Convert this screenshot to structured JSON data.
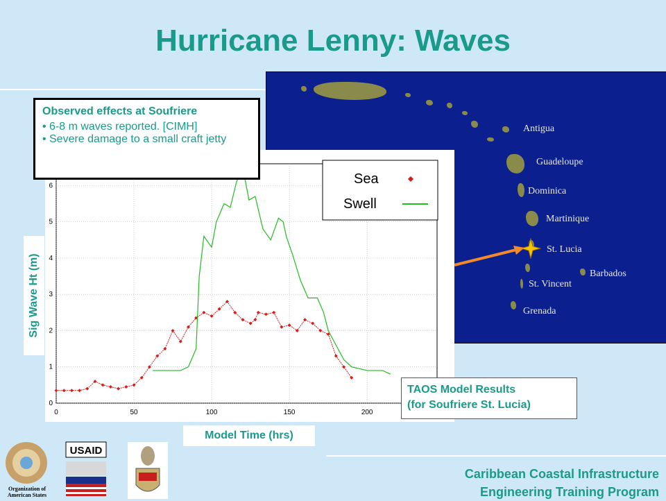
{
  "title": "Hurricane Lenny: Waves",
  "observed": {
    "heading": "Observed effects at Soufriere",
    "bullets": [
      "6-8 m waves reported. [CIMH]",
      "Severe damage to a small craft jetty"
    ]
  },
  "taos": {
    "line1": "TAOS Model Results",
    "line2": "(for Soufriere St. Lucia)"
  },
  "map": {
    "labels": [
      "Antigua",
      "Guadeloupe",
      "Dominica",
      "Martinique",
      "St. Lucia",
      "Barbados",
      "St. Vincent",
      "Grenada"
    ],
    "colors": {
      "sea": "#0b1f8f",
      "land": "#8a8a4a",
      "marker": "#f5c400",
      "arrow": "#f08a2a"
    }
  },
  "footer": {
    "line1": "Caribbean Coastal Infrastructure",
    "line2": "Engineering Training Program"
  },
  "logos": {
    "oas": "Organization of American States",
    "usaid": "USAID"
  },
  "chart_data": {
    "type": "line",
    "xlabel": "Model Time (hrs)",
    "ylabel": "Sig Wave Ht (m)",
    "xlim": [
      0,
      245
    ],
    "ylim": [
      0,
      6.6
    ],
    "xticks": [
      0,
      50,
      100,
      150,
      200
    ],
    "yticks": [
      0,
      1,
      2,
      3,
      4,
      5,
      6
    ],
    "grid": true,
    "legend_position": "top-right",
    "series": [
      {
        "name": "Sea",
        "color": "#d81b1b",
        "style": "markers",
        "x": [
          0,
          5,
          10,
          15,
          20,
          25,
          30,
          35,
          40,
          45,
          50,
          55,
          60,
          65,
          70,
          75,
          80,
          85,
          90,
          95,
          100,
          105,
          110,
          115,
          120,
          125,
          128,
          130,
          135,
          140,
          145,
          150,
          155,
          160,
          165,
          170,
          175,
          180,
          185,
          190
        ],
        "y": [
          0.35,
          0.35,
          0.35,
          0.35,
          0.4,
          0.6,
          0.5,
          0.45,
          0.4,
          0.45,
          0.5,
          0.7,
          1.0,
          1.3,
          1.5,
          2.0,
          1.7,
          2.1,
          2.35,
          2.5,
          2.4,
          2.6,
          2.8,
          2.5,
          2.3,
          2.2,
          2.3,
          2.5,
          2.45,
          2.5,
          2.1,
          2.15,
          2.0,
          2.3,
          2.2,
          2.0,
          1.9,
          1.3,
          1.0,
          0.7
        ]
      },
      {
        "name": "Swell",
        "color": "#22bb22",
        "style": "line",
        "x": [
          62,
          70,
          75,
          80,
          85,
          90,
          92,
          95,
          100,
          103,
          108,
          112,
          116,
          120,
          124,
          128,
          133,
          138,
          143,
          146,
          148,
          152,
          157,
          162,
          168,
          172,
          175,
          180,
          185,
          190,
          200,
          210,
          215
        ],
        "y": [
          0.9,
          0.9,
          0.9,
          0.9,
          1.0,
          1.5,
          3.5,
          4.6,
          4.3,
          5.0,
          5.5,
          5.4,
          6.1,
          6.5,
          5.6,
          5.7,
          4.8,
          4.5,
          5.1,
          5.0,
          4.6,
          4.1,
          3.4,
          2.9,
          2.9,
          2.5,
          2.0,
          1.6,
          1.2,
          1.0,
          0.9,
          0.9,
          0.8
        ]
      }
    ]
  }
}
